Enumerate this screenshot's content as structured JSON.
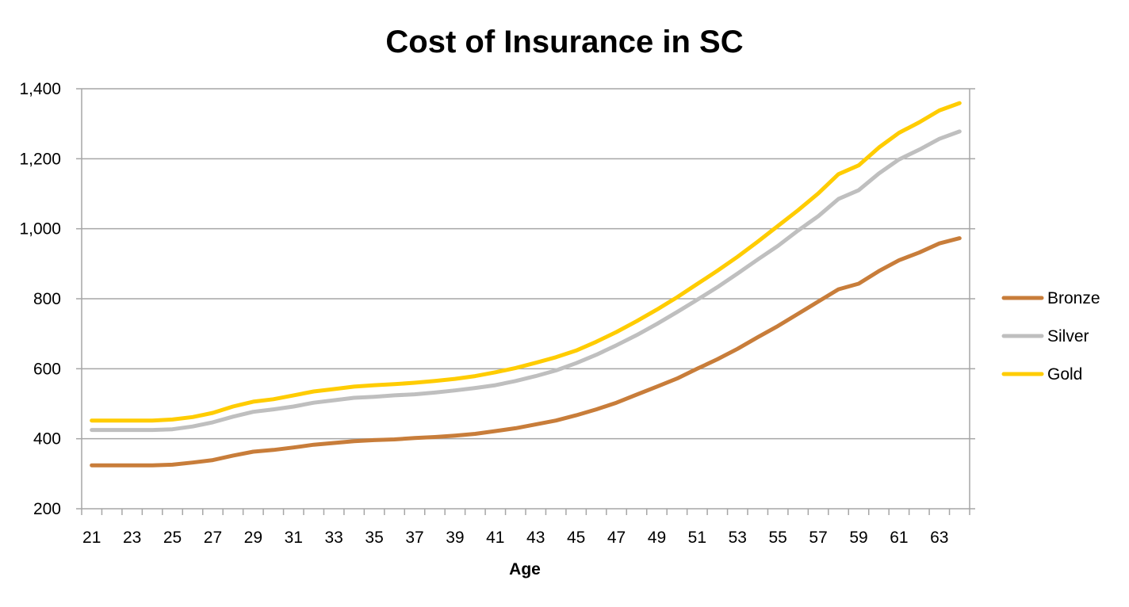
{
  "chart_data": {
    "type": "line",
    "title": "Cost of Insurance in SC",
    "xlabel": "Age",
    "ylabel": "",
    "ylim": [
      200,
      1400
    ],
    "yticks": [
      200,
      400,
      600,
      800,
      1000,
      1200,
      1400
    ],
    "ytick_labels": [
      "200",
      "400",
      "600",
      "800",
      "1,000",
      "1,200",
      "1,400"
    ],
    "x": [
      21,
      22,
      23,
      24,
      25,
      26,
      27,
      28,
      29,
      30,
      31,
      32,
      33,
      34,
      35,
      36,
      37,
      38,
      39,
      40,
      41,
      42,
      43,
      44,
      45,
      46,
      47,
      48,
      49,
      50,
      51,
      52,
      53,
      54,
      55,
      56,
      57,
      58,
      59,
      60,
      61,
      62,
      63,
      64
    ],
    "xtick_labels": [
      "21",
      "23",
      "25",
      "27",
      "29",
      "31",
      "33",
      "35",
      "37",
      "39",
      "41",
      "43",
      "45",
      "47",
      "49",
      "51",
      "53",
      "55",
      "57",
      "59",
      "61",
      "63"
    ],
    "grid": true,
    "legend_position": "right",
    "series": [
      {
        "name": "Bronze",
        "color": "#c87d3a",
        "values": [
          324,
          324,
          324,
          324,
          326,
          332,
          339,
          352,
          363,
          368,
          375,
          383,
          388,
          393,
          396,
          398,
          402,
          405,
          409,
          414,
          422,
          430,
          441,
          452,
          467,
          484,
          503,
          526,
          549,
          572,
          600,
          627,
          657,
          690,
          722,
          757,
          792,
          827,
          843,
          879,
          910,
          932,
          958,
          973
        ]
      },
      {
        "name": "Silver",
        "color": "#bfbfbf",
        "values": [
          425,
          425,
          425,
          425,
          427,
          435,
          447,
          463,
          477,
          484,
          492,
          503,
          510,
          517,
          520,
          524,
          527,
          532,
          538,
          545,
          553,
          565,
          579,
          595,
          616,
          640,
          667,
          696,
          728,
          762,
          797,
          833,
          872,
          912,
          951,
          995,
          1036,
          1085,
          1110,
          1158,
          1198,
          1226,
          1257,
          1278
        ]
      },
      {
        "name": "Gold",
        "color": "#ffcc00",
        "values": [
          452,
          452,
          452,
          452,
          455,
          462,
          474,
          492,
          506,
          513,
          524,
          535,
          542,
          549,
          553,
          556,
          560,
          565,
          571,
          579,
          590,
          602,
          617,
          633,
          652,
          677,
          705,
          736,
          769,
          804,
          842,
          880,
          920,
          963,
          1008,
          1053,
          1101,
          1156,
          1181,
          1232,
          1274,
          1304,
          1338,
          1359
        ]
      }
    ]
  }
}
